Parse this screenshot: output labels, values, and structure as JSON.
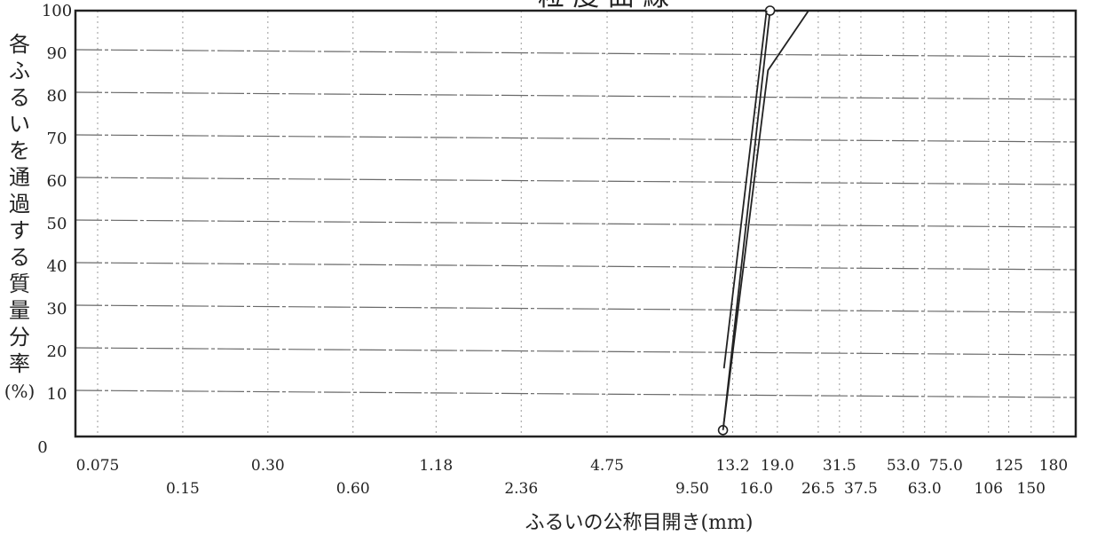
{
  "chart_data": {
    "type": "line",
    "title": "粒 度 曲 線",
    "xlabel": "ふるいの公称目開き(mm)",
    "ylabel": "各ふるいを通過する質量分率(%)",
    "x_scale": "log",
    "xlim": [
      0.075,
      180
    ],
    "ylim": [
      0,
      100
    ],
    "grid": true,
    "y_ticks": [
      "0",
      "10",
      "20",
      "30",
      "40",
      "50",
      "60",
      "70",
      "80",
      "90",
      "100"
    ],
    "x_ticks": [
      {
        "label": "0.075",
        "value": 0.075
      },
      {
        "label": "0.15",
        "value": 0.15
      },
      {
        "label": "0.30",
        "value": 0.3
      },
      {
        "label": "0.60",
        "value": 0.6
      },
      {
        "label": "1.18",
        "value": 1.18
      },
      {
        "label": "2.36",
        "value": 2.36
      },
      {
        "label": "4.75",
        "value": 4.75
      },
      {
        "label": "9.50",
        "value": 9.5
      },
      {
        "label": "13.2",
        "value": 13.2
      },
      {
        "label": "16.0",
        "value": 16.0
      },
      {
        "label": "19.0",
        "value": 19.0
      },
      {
        "label": "26.5",
        "value": 26.5
      },
      {
        "label": "31.5",
        "value": 31.5
      },
      {
        "label": "37.5",
        "value": 37.5
      },
      {
        "label": "53.0",
        "value": 53.0
      },
      {
        "label": "63.0",
        "value": 63.0
      },
      {
        "label": "75.0",
        "value": 75.0
      },
      {
        "label": "106",
        "value": 106
      },
      {
        "label": "125",
        "value": 125
      },
      {
        "label": "150",
        "value": 150
      },
      {
        "label": "180",
        "value": 180
      }
    ],
    "series": [
      {
        "points": [
          [
            12.2,
            1.5
          ],
          [
            17.9,
            100
          ]
        ],
        "markers": true,
        "color": "#222222"
      },
      {
        "points": [
          [
            12.2,
            1.5
          ],
          [
            17.6,
            86
          ],
          [
            24.5,
            100
          ]
        ],
        "markers": false,
        "color": "#222222"
      },
      {
        "points": [
          [
            12.3,
            16
          ],
          [
            17.4,
            100
          ]
        ],
        "markers": false,
        "color": "#222222"
      }
    ]
  }
}
